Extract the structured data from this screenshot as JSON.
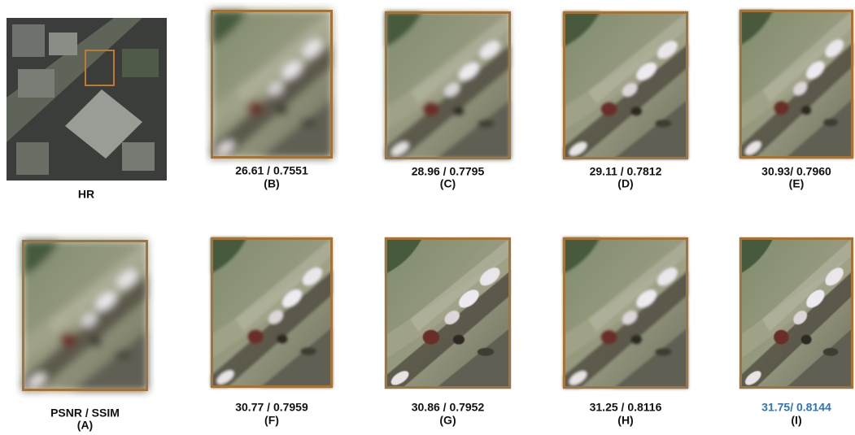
{
  "hr": {
    "label": "HR"
  },
  "panels": [
    {
      "metrics": "PSNR / SSIM",
      "label": "(A)"
    },
    {
      "metrics": "26.61 / 0.7551",
      "label": "(B)"
    },
    {
      "metrics": "28.96 / 0.7795",
      "label": "(C)"
    },
    {
      "metrics": "29.11 / 0.7812",
      "label": "(D)"
    },
    {
      "metrics": "30.93/ 0.7960",
      "label": "(E)"
    },
    {
      "metrics": "30.77 / 0.7959",
      "label": "(F)"
    },
    {
      "metrics": "30.86 / 0.7952",
      "label": "(G)"
    },
    {
      "metrics": "31.25 / 0.8116",
      "label": "(H)"
    },
    {
      "metrics": "31.75/ 0.8144",
      "label": "(I)",
      "color": "#2e75b6"
    }
  ]
}
